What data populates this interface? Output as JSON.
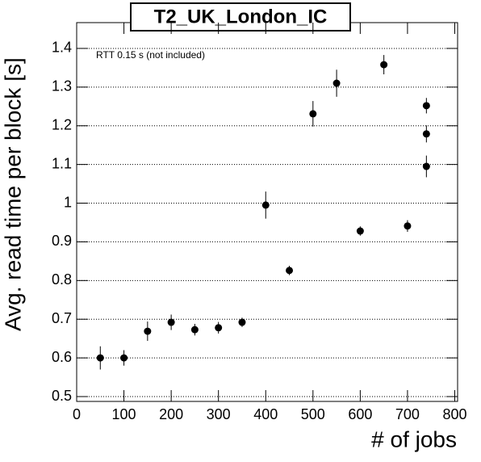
{
  "chart_data": {
    "type": "scatter",
    "title": "T2_UK_London_IC",
    "annotation": "RTT 0.15 s (not included)",
    "x_label": "# of jobs",
    "y_label": "Avg. read time per block [s]",
    "series": [
      {
        "name": "T2_UK_London_IC",
        "color": "#000000",
        "x": [
          50,
          100,
          150,
          200,
          250,
          300,
          350,
          400,
          450,
          500,
          550,
          600,
          650,
          700,
          740,
          740,
          740
        ],
        "values": [
          0.6,
          0.6,
          0.669,
          0.692,
          0.673,
          0.678,
          0.692,
          0.995,
          0.826,
          1.231,
          1.31,
          0.928,
          1.358,
          0.941,
          1.252,
          1.179,
          1.095
        ],
        "errors": [
          0.03,
          0.02,
          0.025,
          0.02,
          0.015,
          0.015,
          0.012,
          0.035,
          0.012,
          0.033,
          0.035,
          0.012,
          0.025,
          0.015,
          0.02,
          0.022,
          0.028
        ]
      }
    ],
    "xlim": [
      0,
      806
    ],
    "ylim": [
      0.4875,
      1.4667
    ],
    "xticks": [
      0,
      100,
      200,
      300,
      400,
      500,
      600,
      700,
      800
    ],
    "yticks": [
      0.5,
      0.6,
      0.7,
      0.8,
      0.9,
      1,
      1.1,
      1.2,
      1.3,
      1.4
    ],
    "grid": true
  }
}
